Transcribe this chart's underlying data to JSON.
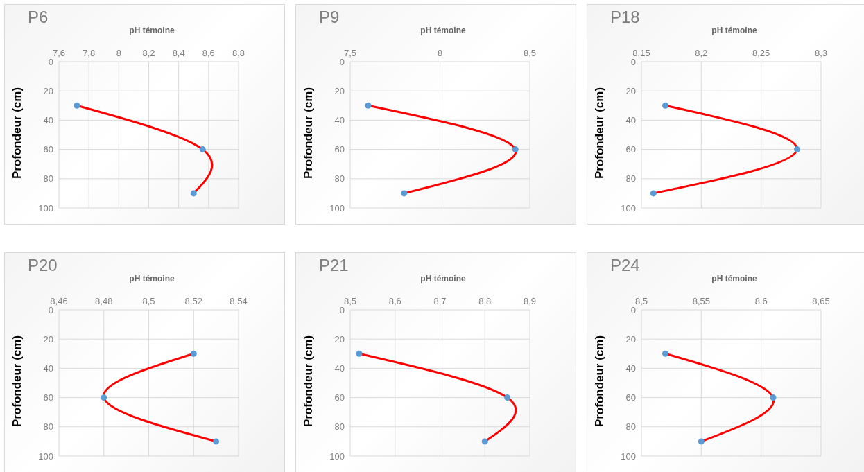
{
  "chart_data": [
    {
      "type": "line",
      "title": "P6",
      "xlabel": "pH témoine",
      "ylabel": "Profondeur  (cm)",
      "xlim": [
        7.6,
        8.8
      ],
      "xticks": [
        {
          "value": 7.6,
          "label": "7,6"
        },
        {
          "value": 7.8,
          "label": "7,8"
        },
        8,
        {
          "value": 8.2,
          "label": "8,2"
        },
        {
          "value": 8.4,
          "label": "8,4"
        },
        {
          "value": 8.6,
          "label": "8,6"
        },
        {
          "value": 8.8,
          "label": "8,8"
        }
      ],
      "ylim": [
        100,
        0
      ],
      "yticks": [
        0,
        20,
        40,
        60,
        80,
        100
      ],
      "grid": true,
      "marker": "circle",
      "line_style": "solid",
      "series": [
        {
          "color": "#ff0000",
          "x": [
            7.72,
            8.56,
            8.5
          ],
          "values": [
            30,
            60,
            90
          ]
        }
      ]
    },
    {
      "type": "line",
      "title": "P9",
      "xlabel": "pH témoine",
      "ylabel": "Profondeur  (cm)",
      "xlim": [
        7.5,
        8.5
      ],
      "xticks": [
        {
          "value": 7.5,
          "label": "7,5"
        },
        8,
        {
          "value": 8.5,
          "label": "8,5"
        }
      ],
      "ylim": [
        100,
        0
      ],
      "yticks": [
        0,
        20,
        40,
        60,
        80,
        100
      ],
      "grid": true,
      "marker": "circle",
      "line_style": "solid",
      "series": [
        {
          "color": "#ff0000",
          "x": [
            7.6,
            8.42,
            7.8
          ],
          "values": [
            30,
            60,
            90
          ]
        }
      ]
    },
    {
      "type": "line",
      "title": "P18",
      "xlabel": "pH  témoine",
      "ylabel": "Profondeur  (cm)",
      "xlim": [
        8.15,
        8.3
      ],
      "xticks": [
        {
          "value": 8.15,
          "label": "8,15"
        },
        {
          "value": 8.2,
          "label": "8,2"
        },
        {
          "value": 8.25,
          "label": "8,25"
        },
        {
          "value": 8.3,
          "label": "8,3"
        }
      ],
      "ylim": [
        100,
        0
      ],
      "yticks": [
        0,
        20,
        40,
        60,
        80,
        100
      ],
      "grid": true,
      "marker": "circle",
      "line_style": "solid",
      "series": [
        {
          "color": "#ff0000",
          "x": [
            8.17,
            8.28,
            8.16
          ],
          "values": [
            30,
            60,
            90
          ]
        }
      ]
    },
    {
      "type": "line",
      "title": "P20",
      "xlabel": "pH  témoine",
      "ylabel": "Profondeur  (cm)",
      "xlim": [
        8.46,
        8.54
      ],
      "xticks": [
        {
          "value": 8.46,
          "label": "8,46"
        },
        {
          "value": 8.48,
          "label": "8,48"
        },
        {
          "value": 8.5,
          "label": "8,5"
        },
        {
          "value": 8.52,
          "label": "8,52"
        },
        {
          "value": 8.54,
          "label": "8,54"
        }
      ],
      "ylim": [
        100,
        0
      ],
      "yticks": [
        0,
        20,
        40,
        60,
        80,
        100
      ],
      "grid": true,
      "marker": "circle",
      "line_style": "solid",
      "series": [
        {
          "color": "#ff0000",
          "x": [
            8.52,
            8.48,
            8.53
          ],
          "values": [
            30,
            60,
            90
          ]
        }
      ]
    },
    {
      "type": "line",
      "title": "P21",
      "xlabel": "pH  témoine",
      "ylabel": "Profondeur  (cm)",
      "xlim": [
        8.5,
        8.9
      ],
      "xticks": [
        {
          "value": 8.5,
          "label": "8,5"
        },
        {
          "value": 8.6,
          "label": "8,6"
        },
        {
          "value": 8.7,
          "label": "8,7"
        },
        {
          "value": 8.8,
          "label": "8,8"
        },
        {
          "value": 8.9,
          "label": "8,9"
        }
      ],
      "ylim": [
        100,
        0
      ],
      "yticks": [
        0,
        20,
        40,
        60,
        80,
        100
      ],
      "grid": true,
      "marker": "circle",
      "line_style": "solid",
      "series": [
        {
          "color": "#ff0000",
          "x": [
            8.52,
            8.85,
            8.8
          ],
          "values": [
            30,
            60,
            90
          ]
        }
      ]
    },
    {
      "type": "line",
      "title": "P24",
      "xlabel": "pH  témoine",
      "ylabel": "Profondeur  (cm)",
      "xlim": [
        8.5,
        8.65
      ],
      "xticks": [
        {
          "value": 8.5,
          "label": "8,5"
        },
        {
          "value": 8.55,
          "label": "8,55"
        },
        {
          "value": 8.6,
          "label": "8,6"
        },
        {
          "value": 8.65,
          "label": "8,65"
        }
      ],
      "ylim": [
        100,
        0
      ],
      "yticks": [
        0,
        20,
        40,
        60,
        80,
        100
      ],
      "grid": true,
      "marker": "circle",
      "line_style": "solid",
      "series": [
        {
          "color": "#ff0000",
          "x": [
            8.52,
            8.61,
            8.55
          ],
          "values": [
            30,
            60,
            90
          ]
        }
      ]
    }
  ]
}
